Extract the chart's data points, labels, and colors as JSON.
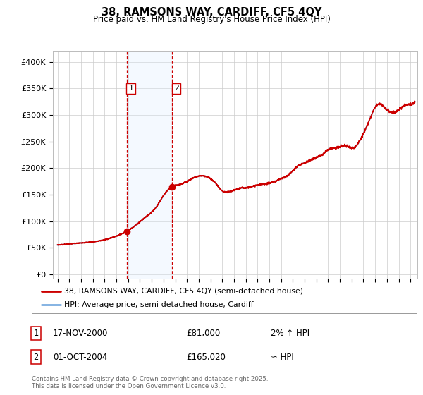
{
  "title1": "38, RAMSONS WAY, CARDIFF, CF5 4QY",
  "title2": "Price paid vs. HM Land Registry's House Price Index (HPI)",
  "ylabel_vals": [
    0,
    50000,
    100000,
    150000,
    200000,
    250000,
    300000,
    350000,
    400000
  ],
  "ylabel_labels": [
    "£0",
    "£50K",
    "£100K",
    "£150K",
    "£200K",
    "£250K",
    "£300K",
    "£350K",
    "£400K"
  ],
  "xlim": [
    1994.6,
    2025.6
  ],
  "ylim": [
    -8000,
    420000
  ],
  "sale1_year": 2000.88,
  "sale1_price": 81000,
  "sale2_year": 2004.75,
  "sale2_price": 165020,
  "line_color_property": "#cc0000",
  "line_color_hpi": "#7aade0",
  "marker_color": "#cc0000",
  "shade_color": "#ddeeff",
  "dashed_color": "#cc0000",
  "legend_line1": "38, RAMSONS WAY, CARDIFF, CF5 4QY (semi-detached house)",
  "legend_line2": "HPI: Average price, semi-detached house, Cardiff",
  "table_row1_num": "1",
  "table_row1_date": "17-NOV-2000",
  "table_row1_price": "£81,000",
  "table_row1_hpi": "2% ↑ HPI",
  "table_row2_num": "2",
  "table_row2_date": "01-OCT-2004",
  "table_row2_price": "£165,020",
  "table_row2_hpi": "≈ HPI",
  "footnote1": "Contains HM Land Registry data © Crown copyright and database right 2025.",
  "footnote2": "This data is licensed under the Open Government Licence v3.0.",
  "grid_color": "#cccccc",
  "bg": "#ffffff"
}
